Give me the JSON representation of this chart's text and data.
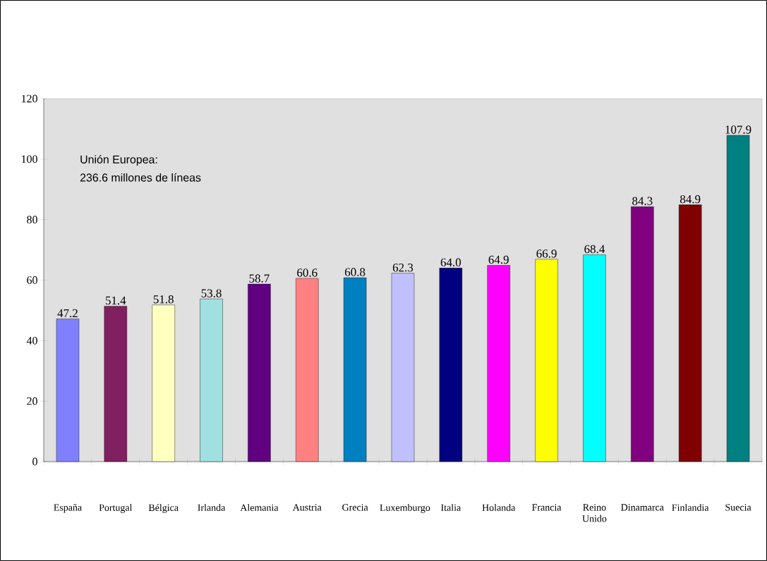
{
  "chart_data": {
    "type": "bar",
    "categories": [
      "España",
      "Portugal",
      "Bélgica",
      "Irlanda",
      "Alemania",
      "Austria",
      "Grecia",
      "Luxemburgo",
      "Italia",
      "Holanda",
      "Francia",
      "Reino Unido",
      "Dinamarca",
      "Finlandia",
      "Suecia"
    ],
    "values": [
      47.2,
      51.4,
      51.8,
      53.8,
      58.7,
      60.6,
      60.8,
      62.3,
      64.0,
      64.9,
      66.9,
      68.4,
      84.3,
      84.9,
      107.9
    ],
    "colors": [
      "#8080ff",
      "#802060",
      "#ffffc0",
      "#a0e0e0",
      "#600080",
      "#ff8080",
      "#0080c0",
      "#c0c0ff",
      "#000080",
      "#ff00ff",
      "#ffff00",
      "#00ffff",
      "#800080",
      "#800000",
      "#008080"
    ],
    "ylim": [
      0,
      120
    ],
    "yticks": [
      0,
      20,
      40,
      60,
      80,
      100,
      120
    ],
    "value_labels": [
      "47.2",
      "51.4",
      "51.8",
      "53.8",
      "58.7",
      "60.6",
      "60.8",
      "62.3",
      "64.0",
      "64.9",
      "66.9",
      "68.4",
      "84.3",
      "84.9",
      "107.9"
    ],
    "grid": false,
    "annotations": [
      "Unión Europea:",
      "236.6 millones de líneas"
    ]
  }
}
